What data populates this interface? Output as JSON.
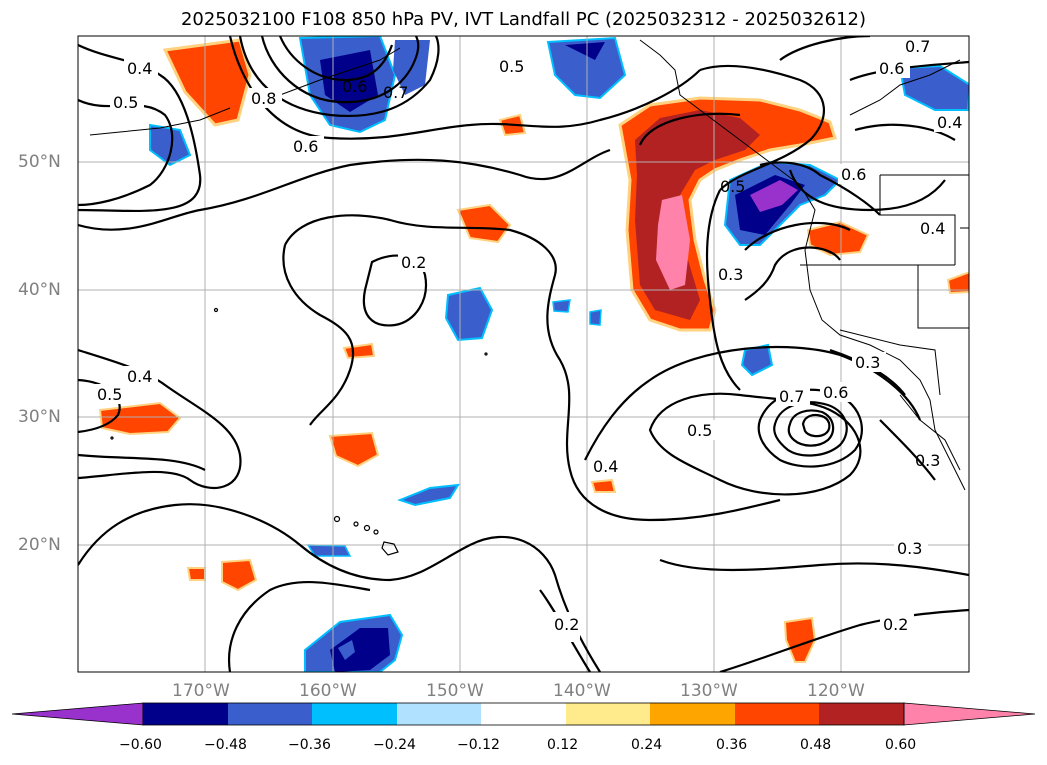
{
  "title": "2025032100 F108 850 hPa PV, IVT Landfall PC (2025032312 - 2025032612)",
  "lat_labels": [
    "50°N",
    "40°N",
    "30°N",
    "20°N"
  ],
  "lon_labels": [
    "170°W",
    "160°W",
    "150°W",
    "140°W",
    "130°W",
    "120°W"
  ],
  "contour_labels": [
    "0.4",
    "0.5",
    "0.6",
    "0.6",
    "0.7",
    "0.8",
    "0.5",
    "0.7",
    "0.6",
    "0.4",
    "0.6",
    "0.5",
    "0.2",
    "0.3",
    "0.4",
    "0.5",
    "0.5",
    "0.7",
    "0.6",
    "0.3",
    "0.4",
    "0.3",
    "0.3",
    "0.2",
    "0.2",
    "0.4"
  ],
  "colorbar": {
    "ticks": [
      "−0.60",
      "−0.48",
      "−0.36",
      "−0.24",
      "−0.12",
      "0.12",
      "0.24",
      "0.36",
      "0.48",
      "0.60"
    ],
    "colors": [
      "#9932cc",
      "#00008b",
      "#3a5fcd",
      "#00bfff",
      "#b0e2ff",
      "#ffffff",
      "#ffeb8c",
      "#ffa500",
      "#ff4500",
      "#b22222",
      "#ff82ab"
    ]
  },
  "colors": {
    "neg_strong": "#00008b",
    "neg_mid": "#3a5fcd",
    "neg_light": "#00bfff",
    "pos_mid": "#ff4500",
    "pos_strong": "#b22222",
    "pos_max": "#ff82ab",
    "extreme_neg": "#9932cc",
    "contour": "#000000",
    "grid": "#b0b0b0"
  }
}
